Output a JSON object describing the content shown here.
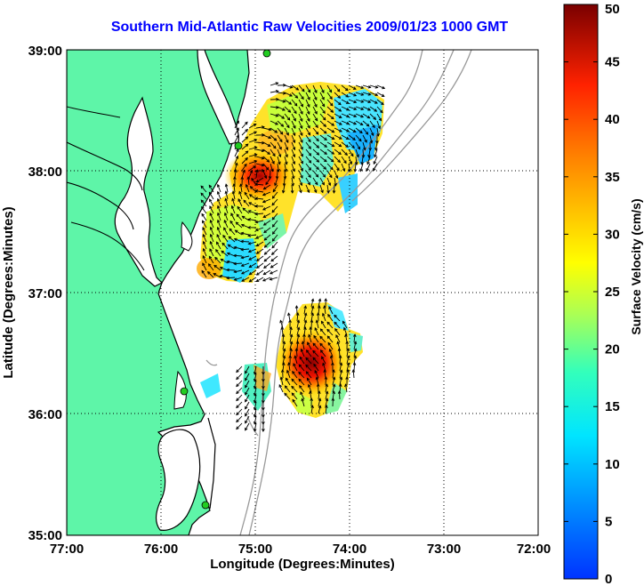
{
  "title": "Southern Mid-Atlantic Raw Velocities 2009/01/23 1000 GMT",
  "x_axis": {
    "label": "Longitude (Degrees:Minutes)",
    "ticks": [
      "77:00",
      "76:00",
      "75:00",
      "74:00",
      "73:00",
      "72:00"
    ]
  },
  "y_axis": {
    "label": "Latitude (Degrees:Minutes)",
    "ticks": [
      "39:00",
      "38:00",
      "37:00",
      "36:00",
      "35:00"
    ]
  },
  "colorbar": {
    "label": "Surface Velocity (cm/s)",
    "ticks": [
      "50",
      "45",
      "40",
      "35",
      "30",
      "25",
      "20",
      "15",
      "10",
      "5",
      "0"
    ]
  },
  "colors": {
    "land": "#5ef5a8",
    "ocean": "#ffffff",
    "coast": "#000000",
    "bathymetry": "#999999",
    "grid": "#000000",
    "stations": "#22cc22",
    "title": "#0000ff"
  },
  "chart_data": {
    "type": "map",
    "extent": {
      "lon": [
        -77,
        -72
      ],
      "lat": [
        35,
        39
      ]
    },
    "colormap": "jet",
    "value_range_cm_s": [
      0,
      50
    ],
    "stations": [
      {
        "lon": -74.93,
        "lat": 38.98
      },
      {
        "lon": -75.15,
        "lat": 38.22
      },
      {
        "lon": -75.75,
        "lat": 36.17
      },
      {
        "lon": -75.5,
        "lat": 35.23
      }
    ],
    "velocity_regions": [
      {
        "name": "north",
        "lon": [
          -75.5,
          -73.7
        ],
        "lat": [
          37.1,
          38.6
        ],
        "hotspot": {
          "lon": -75.2,
          "lat": 37.95,
          "speed": 48
        }
      },
      {
        "name": "south",
        "lon": [
          -75.1,
          -73.8
        ],
        "lat": [
          35.9,
          36.9
        ],
        "hotspot": {
          "lon": -74.5,
          "lat": 36.35,
          "speed": 50
        }
      }
    ]
  }
}
